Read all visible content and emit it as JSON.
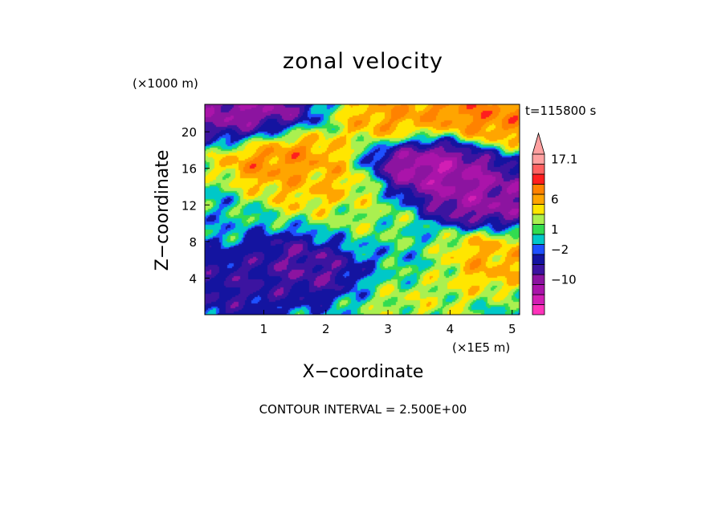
{
  "chart_data": {
    "type": "heatmap",
    "title": "zonal velocity",
    "xlabel": "X−coordinate",
    "ylabel": "Z−coordinate",
    "x_scale_note": "(×1E5 m)",
    "y_scale_note": "(×1000 m)",
    "time_label": "t=115800 s",
    "contour_note": "CONTOUR INTERVAL = 2.500E+00",
    "xlim": [
      0.05,
      5.12
    ],
    "ylim": [
      0,
      23
    ],
    "x_ticks": [
      "1",
      "2",
      "3",
      "4",
      "5"
    ],
    "y_ticks": [
      "4",
      "8",
      "12",
      "16",
      "20"
    ],
    "colorbar": {
      "levels": [
        -17.5,
        -15,
        -12.5,
        -10,
        -7.5,
        -5,
        -2,
        -1,
        1,
        2,
        4,
        6,
        8.5,
        11,
        13.5,
        17.1
      ],
      "colors": [
        "#ff33bb",
        "#d21eb4",
        "#aa14aa",
        "#8c14a0",
        "#3c14a0",
        "#1414a0",
        "#1e50ff",
        "#00c8c8",
        "#32dc50",
        "#aaf050",
        "#ffe600",
        "#ffa500",
        "#ff8200",
        "#ff1e1e",
        "#ff6060",
        "#ffa0a0"
      ],
      "labels": [
        "17.1",
        "6",
        "1",
        "−2",
        "−10"
      ],
      "label_values": [
        17.1,
        6,
        1,
        -2,
        -10
      ]
    },
    "field_features": [
      {
        "x": 0.8,
        "z": 21.5,
        "u": -12
      },
      {
        "x": 3.7,
        "z": 16.5,
        "u": -13
      },
      {
        "x": 4.5,
        "z": 12.8,
        "u": -11
      },
      {
        "x": 3.2,
        "z": 21.6,
        "u": 9
      },
      {
        "x": 4.5,
        "z": 21.8,
        "u": 11
      },
      {
        "x": 1.2,
        "z": 17.7,
        "u": 11
      },
      {
        "x": 1.9,
        "z": 14.2,
        "u": 7
      },
      {
        "x": 4.5,
        "z": 6.0,
        "u": 8
      },
      {
        "x": 1.8,
        "z": 5.5,
        "u": -8
      },
      {
        "x": 0.5,
        "z": 3.2,
        "u": -6
      },
      {
        "x": 3.5,
        "z": 2.0,
        "u": 4
      },
      {
        "x": 2.6,
        "z": 10.0,
        "u": 3
      },
      {
        "x": 3.3,
        "z": 6.0,
        "u": 0
      }
    ]
  }
}
